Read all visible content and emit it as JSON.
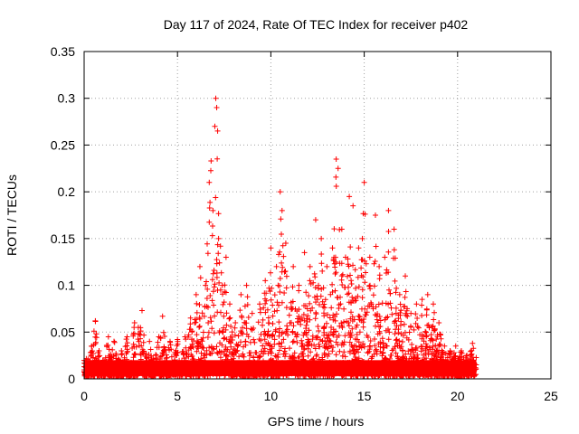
{
  "chart_data": {
    "type": "scatter",
    "title": "Day 117 of 2024, Rate Of TEC Index for receiver p402",
    "xlabel": "GPS time / hours",
    "ylabel": "ROTI / TECUs",
    "xlim": [
      0,
      25
    ],
    "ylim": [
      0,
      0.35
    ],
    "xticks": [
      "0",
      "5",
      "10",
      "15",
      "20",
      "25"
    ],
    "yticks": [
      "0",
      "0.05",
      "0.1",
      "0.15",
      "0.2",
      "0.25",
      "0.3",
      "0.35"
    ],
    "grid": true,
    "marker": "+",
    "series": [
      {
        "color": "#ff0000",
        "points": [
          [
            0.1,
            0.012
          ],
          [
            0.4,
            0.035
          ],
          [
            0.6,
            0.062
          ],
          [
            0.8,
            0.03
          ],
          [
            1.0,
            0.02
          ],
          [
            1.3,
            0.045
          ],
          [
            1.6,
            0.04
          ],
          [
            2.0,
            0.03
          ],
          [
            2.3,
            0.045
          ],
          [
            2.7,
            0.06
          ],
          [
            2.9,
            0.055
          ],
          [
            3.1,
            0.073
          ],
          [
            3.5,
            0.04
          ],
          [
            4.0,
            0.045
          ],
          [
            4.2,
            0.067
          ],
          [
            4.6,
            0.04
          ],
          [
            5.0,
            0.042
          ],
          [
            5.4,
            0.045
          ],
          [
            5.7,
            0.065
          ],
          [
            6.0,
            0.09
          ],
          [
            6.2,
            0.12
          ],
          [
            6.5,
            0.1
          ],
          [
            6.7,
            0.21
          ],
          [
            6.8,
            0.233
          ],
          [
            6.9,
            0.18
          ],
          [
            7.0,
            0.27
          ],
          [
            7.05,
            0.3
          ],
          [
            7.1,
            0.29
          ],
          [
            7.15,
            0.265
          ],
          [
            7.2,
            0.15
          ],
          [
            7.4,
            0.1
          ],
          [
            7.6,
            0.13
          ],
          [
            7.8,
            0.08
          ],
          [
            8.1,
            0.06
          ],
          [
            8.4,
            0.09
          ],
          [
            8.7,
            0.1
          ],
          [
            9.0,
            0.07
          ],
          [
            9.4,
            0.08
          ],
          [
            9.7,
            0.105
          ],
          [
            10.0,
            0.14
          ],
          [
            10.3,
            0.12
          ],
          [
            10.5,
            0.2
          ],
          [
            10.6,
            0.18
          ],
          [
            10.8,
            0.145
          ],
          [
            11.2,
            0.12
          ],
          [
            11.5,
            0.1
          ],
          [
            11.8,
            0.135
          ],
          [
            12.1,
            0.12
          ],
          [
            12.4,
            0.17
          ],
          [
            12.7,
            0.15
          ],
          [
            13.0,
            0.12
          ],
          [
            13.3,
            0.14
          ],
          [
            13.5,
            0.235
          ],
          [
            13.6,
            0.225
          ],
          [
            13.8,
            0.16
          ],
          [
            14.0,
            0.13
          ],
          [
            14.2,
            0.195
          ],
          [
            14.4,
            0.185
          ],
          [
            14.7,
            0.14
          ],
          [
            14.9,
            0.15
          ],
          [
            15.0,
            0.21
          ],
          [
            15.3,
            0.13
          ],
          [
            15.6,
            0.175
          ],
          [
            15.8,
            0.12
          ],
          [
            16.1,
            0.13
          ],
          [
            16.3,
            0.18
          ],
          [
            16.6,
            0.16
          ],
          [
            16.9,
            0.09
          ],
          [
            17.2,
            0.11
          ],
          [
            17.5,
            0.07
          ],
          [
            17.8,
            0.08
          ],
          [
            18.1,
            0.085
          ],
          [
            18.4,
            0.09
          ],
          [
            18.7,
            0.08
          ],
          [
            19.0,
            0.06
          ],
          [
            19.3,
            0.035
          ],
          [
            19.6,
            0.03
          ],
          [
            19.9,
            0.035
          ],
          [
            20.2,
            0.03
          ],
          [
            20.5,
            0.025
          ],
          [
            20.8,
            0.038
          ],
          [
            21.0,
            0.015
          ]
        ]
      }
    ]
  }
}
